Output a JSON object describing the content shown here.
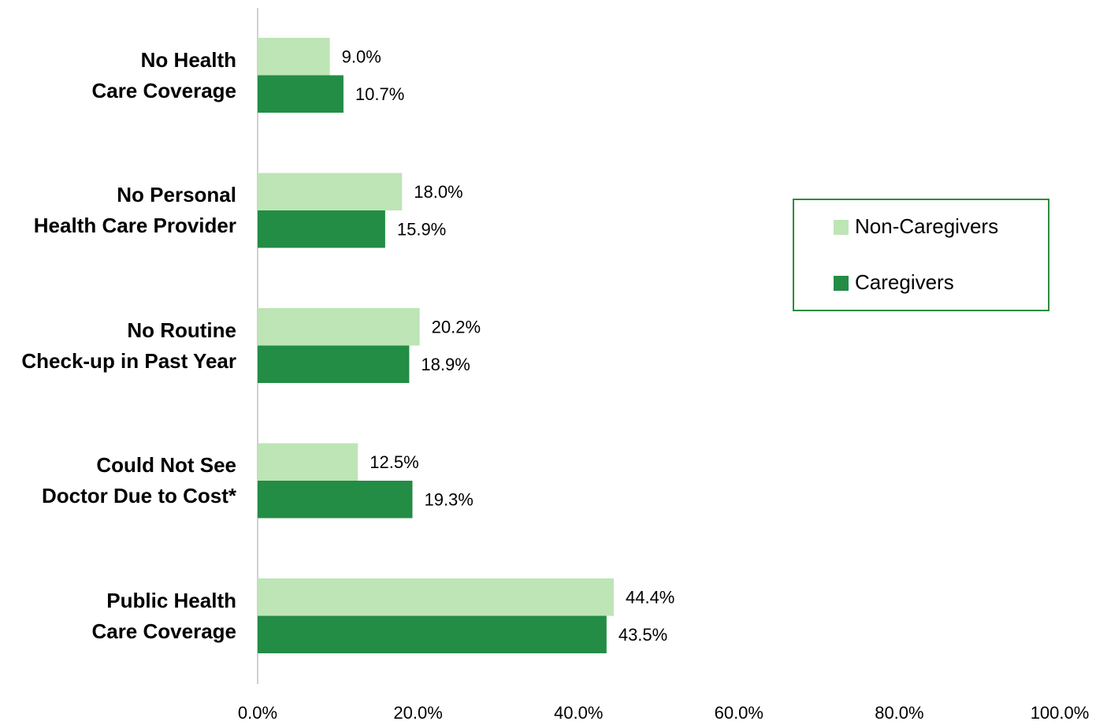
{
  "chart_data": {
    "type": "bar",
    "orientation": "horizontal",
    "categories": [
      "No Health\nCare Coverage",
      "No Personal\nHealth Care Provider",
      "No Routine\nCheck-up in Past Year",
      "Could Not See\nDoctor Due to Cost*",
      "Public Health\nCare Coverage"
    ],
    "series": [
      {
        "name": "Non-Caregivers",
        "color": "#bde5b6",
        "values": [
          9.0,
          18.0,
          20.2,
          12.5,
          44.4
        ],
        "value_labels": [
          "9.0%",
          "18.0%",
          "20.2%",
          "12.5%",
          "44.4%"
        ]
      },
      {
        "name": "Caregivers",
        "color": "#238c45",
        "values": [
          10.7,
          15.9,
          18.9,
          19.3,
          43.5
        ],
        "value_labels": [
          "10.7%",
          "15.9%",
          "18.9%",
          "19.3%",
          "43.5%"
        ]
      }
    ],
    "xlim": [
      0,
      100
    ],
    "xticks": [
      {
        "value": 0,
        "label": "0.0%"
      },
      {
        "value": 20,
        "label": "20.0%"
      },
      {
        "value": 40,
        "label": "40.0%"
      },
      {
        "value": 60,
        "label": "60.0%"
      },
      {
        "value": 80,
        "label": "80.0%"
      },
      {
        "value": 100,
        "label": "100.0%"
      }
    ],
    "grid": false,
    "legend": "right"
  }
}
